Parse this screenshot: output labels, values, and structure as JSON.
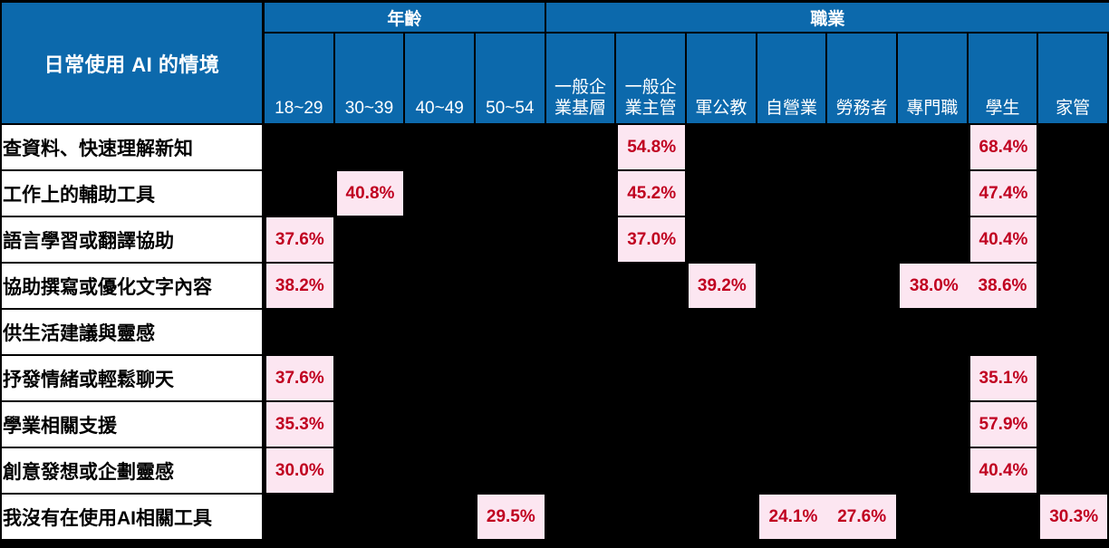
{
  "chart_data": {
    "type": "table",
    "title": "日常使用 AI 的情境",
    "column_groups": [
      {
        "label": "年齡",
        "span": 4
      },
      {
        "label": "職業",
        "span": 8
      }
    ],
    "columns": [
      "18~29",
      "30~39",
      "40~49",
      "50~54",
      "一般企\n業基層",
      "一般企\n業主管",
      "軍公教",
      "自營業",
      "勞務者",
      "專門職",
      "學生",
      "家管"
    ],
    "rows": [
      {
        "label": "查資料、快速理解新知",
        "values": [
          null,
          null,
          null,
          null,
          null,
          "54.8%",
          null,
          null,
          null,
          null,
          "68.4%",
          null
        ]
      },
      {
        "label": "工作上的輔助工具",
        "values": [
          null,
          "40.8%",
          null,
          null,
          null,
          "45.2%",
          null,
          null,
          null,
          null,
          "47.4%",
          null
        ]
      },
      {
        "label": "語言學習或翻譯協助",
        "values": [
          "37.6%",
          null,
          null,
          null,
          null,
          "37.0%",
          null,
          null,
          null,
          null,
          "40.4%",
          null
        ]
      },
      {
        "label": "協助撰寫或優化文字內容",
        "values": [
          "38.2%",
          null,
          null,
          null,
          null,
          null,
          "39.2%",
          null,
          null,
          "38.0%",
          "38.6%",
          null
        ]
      },
      {
        "label": "供生活建議與靈感",
        "values": [
          null,
          null,
          null,
          null,
          null,
          null,
          null,
          null,
          null,
          null,
          null,
          null
        ]
      },
      {
        "label": "抒發情緒或輕鬆聊天",
        "values": [
          "37.6%",
          null,
          null,
          null,
          null,
          null,
          null,
          null,
          null,
          null,
          "35.1%",
          null
        ]
      },
      {
        "label": "學業相關支援",
        "values": [
          "35.3%",
          null,
          null,
          null,
          null,
          null,
          null,
          null,
          null,
          null,
          "57.9%",
          null
        ]
      },
      {
        "label": "創意發想或企劃靈感",
        "values": [
          "30.0%",
          null,
          null,
          null,
          null,
          null,
          null,
          null,
          null,
          null,
          "40.4%",
          null
        ]
      },
      {
        "label": "我沒有在使用AI相關工具",
        "values": [
          null,
          null,
          null,
          "29.5%",
          null,
          null,
          null,
          "24.1%",
          "27.6%",
          null,
          null,
          "30.3%"
        ]
      }
    ]
  },
  "colors": {
    "header_bg": "#0c69ac",
    "row_label_bg": "#ffffff",
    "value_bg": "#fce6f1",
    "value_text": "#c00020",
    "grid_bg": "#000000"
  }
}
